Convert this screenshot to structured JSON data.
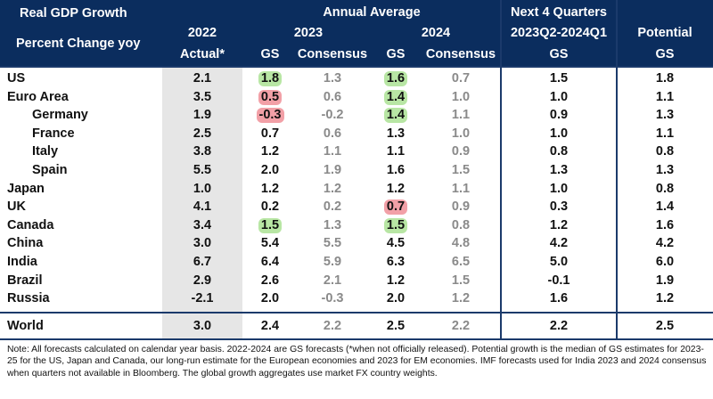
{
  "colors": {
    "header_bg": "#0b2d5e",
    "green_highlight": "#b8e6a4",
    "red_highlight": "#f2a0a7",
    "actual_shade": "#e6e6e6",
    "grey_text": "#8a8a8a"
  },
  "header": {
    "title": "Real GDP Growth",
    "subtitle": "Percent Change yoy",
    "annual_average": "Annual Average",
    "next4": "Next 4 Quarters",
    "potential": "Potential",
    "y2022": "2022",
    "y2023": "2023",
    "y2024": "2024",
    "period": "2023Q2-2024Q1",
    "actual": "Actual*",
    "gs": "GS",
    "consensus": "Consensus"
  },
  "rows": [
    {
      "name": "US",
      "indent": false,
      "a2022": "2.1",
      "gs2023": "1.8",
      "hl2023": "green",
      "con2023": "1.3",
      "gs2024": "1.6",
      "hl2024": "green",
      "con2024": "0.7",
      "next4": "1.5",
      "potential": "1.8"
    },
    {
      "name": "Euro Area",
      "indent": false,
      "a2022": "3.5",
      "gs2023": "0.5",
      "hl2023": "red",
      "con2023": "0.6",
      "gs2024": "1.4",
      "hl2024": "green",
      "con2024": "1.0",
      "next4": "1.0",
      "potential": "1.1"
    },
    {
      "name": "Germany",
      "indent": true,
      "a2022": "1.9",
      "gs2023": "-0.3",
      "hl2023": "red",
      "con2023": "-0.2",
      "gs2024": "1.4",
      "hl2024": "green",
      "con2024": "1.1",
      "next4": "0.9",
      "potential": "1.3"
    },
    {
      "name": "France",
      "indent": true,
      "a2022": "2.5",
      "gs2023": "0.7",
      "hl2023": "",
      "con2023": "0.6",
      "gs2024": "1.3",
      "hl2024": "",
      "con2024": "1.0",
      "next4": "1.0",
      "potential": "1.1"
    },
    {
      "name": "Italy",
      "indent": true,
      "a2022": "3.8",
      "gs2023": "1.2",
      "hl2023": "",
      "con2023": "1.1",
      "gs2024": "1.1",
      "hl2024": "",
      "con2024": "0.9",
      "next4": "0.8",
      "potential": "0.8"
    },
    {
      "name": "Spain",
      "indent": true,
      "a2022": "5.5",
      "gs2023": "2.0",
      "hl2023": "",
      "con2023": "1.9",
      "gs2024": "1.6",
      "hl2024": "",
      "con2024": "1.5",
      "next4": "1.3",
      "potential": "1.3"
    },
    {
      "name": "Japan",
      "indent": false,
      "a2022": "1.0",
      "gs2023": "1.2",
      "hl2023": "",
      "con2023": "1.2",
      "gs2024": "1.2",
      "hl2024": "",
      "con2024": "1.1",
      "next4": "1.0",
      "potential": "0.8"
    },
    {
      "name": "UK",
      "indent": false,
      "a2022": "4.1",
      "gs2023": "0.2",
      "hl2023": "",
      "con2023": "0.2",
      "gs2024": "0.7",
      "hl2024": "red",
      "con2024": "0.9",
      "next4": "0.3",
      "potential": "1.4"
    },
    {
      "name": "Canada",
      "indent": false,
      "a2022": "3.4",
      "gs2023": "1.5",
      "hl2023": "green",
      "con2023": "1.3",
      "gs2024": "1.5",
      "hl2024": "green",
      "con2024": "0.8",
      "next4": "1.2",
      "potential": "1.6"
    },
    {
      "name": "China",
      "indent": false,
      "a2022": "3.0",
      "gs2023": "5.4",
      "hl2023": "",
      "con2023": "5.5",
      "gs2024": "4.5",
      "hl2024": "",
      "con2024": "4.8",
      "next4": "4.2",
      "potential": "4.2"
    },
    {
      "name": "India",
      "indent": false,
      "a2022": "6.7",
      "gs2023": "6.4",
      "hl2023": "",
      "con2023": "5.9",
      "gs2024": "6.3",
      "hl2024": "",
      "con2024": "6.5",
      "next4": "5.0",
      "potential": "6.0"
    },
    {
      "name": "Brazil",
      "indent": false,
      "a2022": "2.9",
      "gs2023": "2.6",
      "hl2023": "",
      "con2023": "2.1",
      "gs2024": "1.2",
      "hl2024": "",
      "con2024": "1.5",
      "next4": "-0.1",
      "potential": "1.9"
    },
    {
      "name": "Russia",
      "indent": false,
      "a2022": "-2.1",
      "gs2023": "2.0",
      "hl2023": "",
      "con2023": "-0.3",
      "gs2024": "2.0",
      "hl2024": "",
      "con2024": "1.2",
      "next4": "1.6",
      "potential": "1.2"
    }
  ],
  "world": {
    "name": "World",
    "a2022": "3.0",
    "gs2023": "2.4",
    "con2023": "2.2",
    "gs2024": "2.5",
    "con2024": "2.2",
    "next4": "2.2",
    "potential": "2.5"
  },
  "note": "Note: All forecasts calculated on calendar year basis. 2022-2024 are GS forecasts (*when not officially released). Potential growth is the median of GS estimates for 2023-25 for the US, Japan and Canada, our long-run estimate for the European economies and 2023 for EM economies. IMF forecasts used for India 2023 and 2024 consensus when quarters not available in Bloomberg. The global growth aggregates use market FX country weights."
}
